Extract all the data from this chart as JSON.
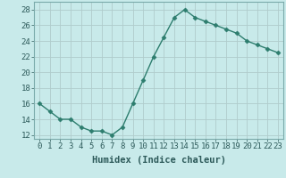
{
  "x": [
    0,
    1,
    2,
    3,
    4,
    5,
    6,
    7,
    8,
    9,
    10,
    11,
    12,
    13,
    14,
    15,
    16,
    17,
    18,
    19,
    20,
    21,
    22,
    23
  ],
  "y": [
    16,
    15,
    14,
    14,
    13,
    12.5,
    12.5,
    12,
    13,
    16,
    19,
    22,
    24.5,
    27,
    28,
    27,
    26.5,
    26,
    25.5,
    25,
    24,
    23.5,
    23,
    22.5
  ],
  "line_color": "#2d7d6e",
  "marker": "D",
  "marker_size": 2.5,
  "bg_color": "#c8eaea",
  "grid_color": "#b0cccc",
  "xlabel": "Humidex (Indice chaleur)",
  "xlim": [
    -0.5,
    23.5
  ],
  "ylim": [
    11.5,
    29
  ],
  "yticks": [
    12,
    14,
    16,
    18,
    20,
    22,
    24,
    26,
    28
  ],
  "xticks": [
    0,
    1,
    2,
    3,
    4,
    5,
    6,
    7,
    8,
    9,
    10,
    11,
    12,
    13,
    14,
    15,
    16,
    17,
    18,
    19,
    20,
    21,
    22,
    23
  ],
  "xlabel_fontsize": 7.5,
  "tick_fontsize": 6.5,
  "line_width": 1.0
}
